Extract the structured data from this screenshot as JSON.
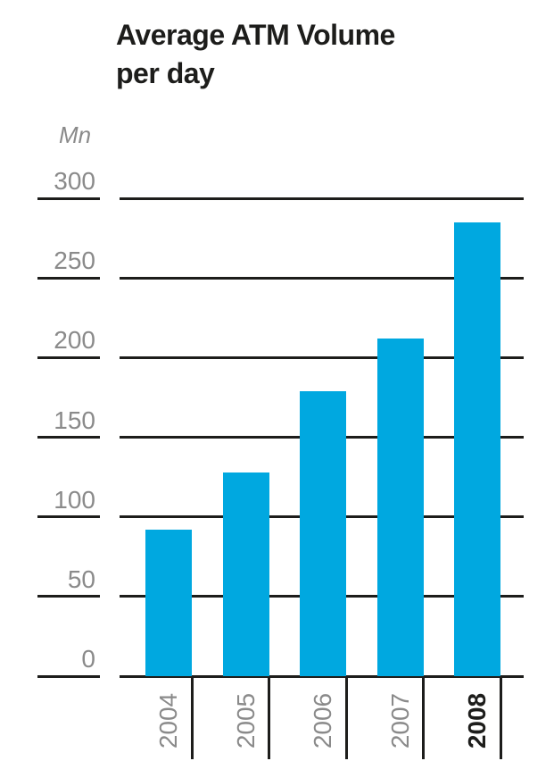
{
  "title": {
    "line1": "Average ATM Volume",
    "line2": "per day"
  },
  "chart_data": {
    "type": "bar",
    "title": "Average ATM Volume per day",
    "unit_label": "Mn",
    "categories": [
      "2004",
      "2005",
      "2006",
      "2007",
      "2008"
    ],
    "values": [
      92,
      128,
      179,
      212,
      285
    ],
    "emphasized_category": "2008",
    "yticks": [
      300,
      250,
      200,
      150,
      100,
      50,
      0
    ],
    "ylim": [
      0,
      300
    ],
    "grid": "on",
    "legend": "none",
    "colors": {
      "bar": "#00A8E0",
      "axis": "#1D1D1B",
      "tick_label": "#8A8A8A",
      "emphasized_label": "#1D1D1B",
      "title": "#1D1D1B",
      "background": "#FFFFFF"
    }
  }
}
